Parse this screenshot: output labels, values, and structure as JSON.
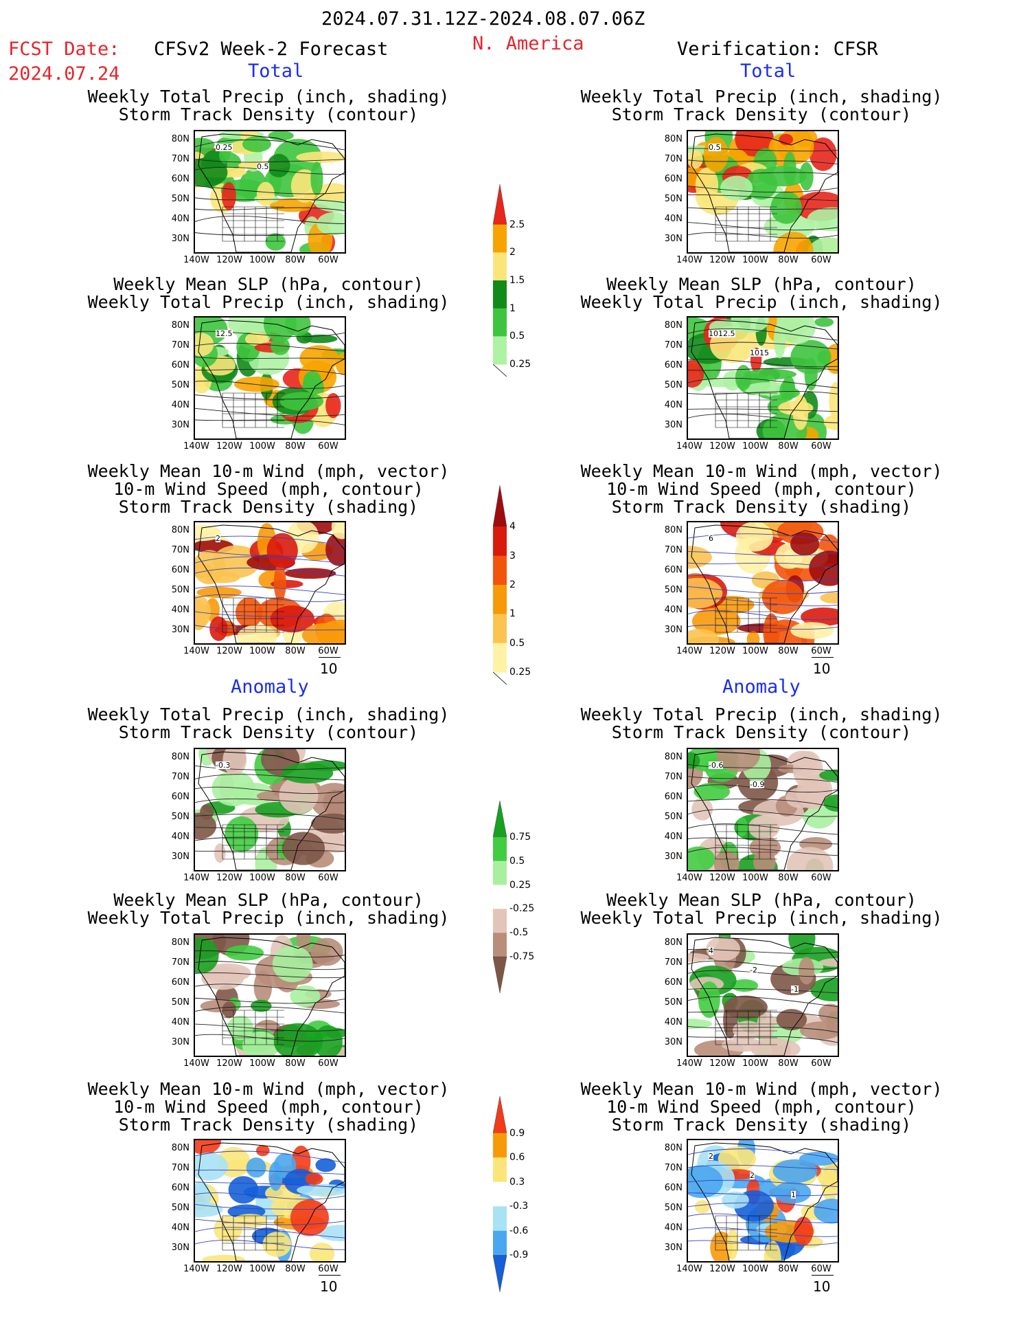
{
  "header": {
    "period": "2024.07.31.12Z-2024.08.07.06Z",
    "fcst_label": "FCST Date:",
    "fcst_date": "2024.07.24",
    "model": "CFSv2 Week-2 Forecast",
    "region": "N. America",
    "verification": "Verification: CFSR"
  },
  "sections": {
    "total": "Total",
    "anomaly": "Anomaly"
  },
  "titles": {
    "precip_storm": [
      "Weekly Total Precip (inch, shading)",
      "Storm Track Density (contour)"
    ],
    "slp_precip": [
      "Weekly Mean SLP (hPa, contour)",
      "Weekly Total Precip (inch, shading)"
    ],
    "wind_storm": [
      "Weekly Mean 10-m Wind (mph, vector)",
      "10-m Wind Speed (mph, contour)",
      "Storm Track Density (shading)"
    ]
  },
  "axes": {
    "lat_labels": [
      "80N",
      "70N",
      "60N",
      "50N",
      "40N",
      "30N"
    ],
    "lon_labels": [
      "140W",
      "120W",
      "100W",
      "80W",
      "60W"
    ]
  },
  "vector_ref": "10",
  "colorbars": {
    "precip_total": {
      "labels": [
        "2.5",
        "2",
        "1.5",
        "1",
        "0.5",
        "0.25"
      ],
      "colors": [
        "#e8261c",
        "#f7a400",
        "#fbe57a",
        "#118a1a",
        "#3ec43e",
        "#aef2a4"
      ]
    },
    "storm_total": {
      "labels": [
        "4",
        "3",
        "2",
        "1",
        "0.5",
        "0.25"
      ],
      "colors": [
        "#9e0d0d",
        "#d91b0e",
        "#f2540b",
        "#f79a0a",
        "#fbc350",
        "#fff2a4"
      ]
    },
    "precip_anom": {
      "labels": [
        "0.75",
        "0.5",
        "0.25",
        "-0.25",
        "-0.5",
        "-0.75"
      ],
      "colors": [
        "#18a020",
        "#41cc41",
        "#a8f0a0",
        "#ffffff",
        "#e2c4b8",
        "#b88d7a",
        "#7e5648"
      ]
    },
    "storm_anom": {
      "labels": [
        "0.9",
        "0.6",
        "0.3",
        "-0.3",
        "-0.6",
        "-0.9"
      ],
      "colors": [
        "#f23b18",
        "#f79a0a",
        "#fbe57a",
        "#ffffff",
        "#a8e2f5",
        "#4aa6f0",
        "#1560d8"
      ]
    }
  },
  "contour_labels": {
    "f_total_precip": [
      "0.25",
      "0.5"
    ],
    "v_total_precip": [
      "0.5"
    ],
    "f_total_slp": [
      "12.5"
    ],
    "v_total_slp": [
      "1012.5",
      "1015"
    ],
    "f_total_wind": [
      "2"
    ],
    "v_total_wind": [
      "6"
    ],
    "f_anom_precip": [
      "-0.3"
    ],
    "v_anom_precip": [
      "-0.6",
      "-0.9"
    ],
    "v_anom_slp": [
      "4",
      "-2",
      "-1"
    ],
    "v_anom_wind": [
      "2",
      "2",
      "1"
    ]
  }
}
